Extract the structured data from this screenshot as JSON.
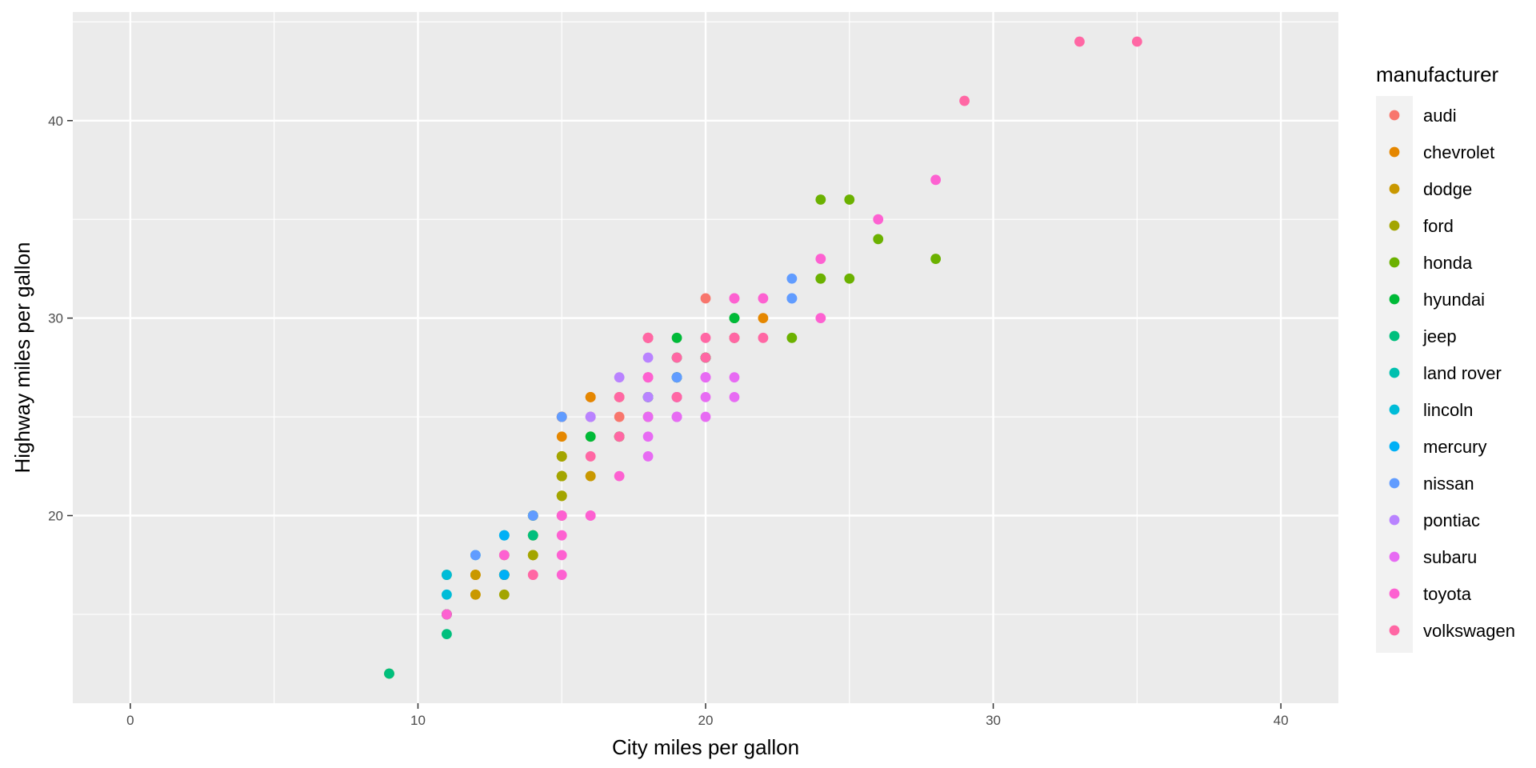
{
  "chart_data": {
    "type": "scatter",
    "xlabel": "City miles per gallon",
    "ylabel": "Highway miles per gallon",
    "xlim": [
      -2,
      42
    ],
    "ylim": [
      10.5,
      45.5
    ],
    "x_ticks": [
      0,
      10,
      20,
      30,
      40
    ],
    "y_ticks": [
      20,
      30,
      40
    ],
    "grid": true,
    "legend": {
      "title": "manufacturer",
      "position": "right"
    },
    "series": [
      {
        "name": "audi",
        "color": "#F8766D",
        "points": [
          [
            18,
            29
          ],
          [
            21,
            29
          ],
          [
            20,
            31
          ],
          [
            21,
            30
          ],
          [
            16,
            26
          ],
          [
            18,
            26
          ],
          [
            18,
            27
          ],
          [
            18,
            26
          ],
          [
            16,
            25
          ],
          [
            20,
            28
          ],
          [
            19,
            27
          ],
          [
            15,
            25
          ],
          [
            17,
            25
          ],
          [
            17,
            24
          ],
          [
            15,
            25
          ]
        ]
      },
      {
        "name": "chevrolet",
        "color": "#E58700",
        "points": [
          [
            14,
            20
          ],
          [
            11,
            15
          ],
          [
            14,
            20
          ],
          [
            13,
            17
          ],
          [
            12,
            17
          ],
          [
            16,
            26
          ],
          [
            15,
            23
          ],
          [
            16,
            26
          ],
          [
            15,
            25
          ],
          [
            15,
            24
          ],
          [
            19,
            27
          ],
          [
            22,
            30
          ],
          [
            18,
            26
          ],
          [
            18,
            29
          ],
          [
            17,
            26
          ],
          [
            15,
            22
          ],
          [
            18,
            25
          ],
          [
            15,
            23
          ],
          [
            12,
            17
          ]
        ]
      },
      {
        "name": "dodge",
        "color": "#C99800",
        "points": [
          [
            15,
            22
          ],
          [
            14,
            18
          ],
          [
            13,
            17
          ],
          [
            16,
            22
          ],
          [
            15,
            21
          ],
          [
            14,
            19
          ],
          [
            11,
            15
          ],
          [
            9,
            12
          ],
          [
            12,
            16
          ],
          [
            12,
            17
          ],
          [
            14,
            18
          ],
          [
            13,
            17
          ],
          [
            15,
            21
          ],
          [
            16,
            22
          ],
          [
            17,
            24
          ],
          [
            13,
            17
          ],
          [
            12,
            16
          ],
          [
            11,
            15
          ],
          [
            15,
            22
          ]
        ]
      },
      {
        "name": "ford",
        "color": "#A3A500",
        "points": [
          [
            11,
            17
          ],
          [
            13,
            16
          ],
          [
            13,
            17
          ],
          [
            15,
            21
          ],
          [
            14,
            19
          ],
          [
            13,
            18
          ],
          [
            15,
            23
          ],
          [
            16,
            24
          ],
          [
            15,
            22
          ],
          [
            15,
            23
          ],
          [
            15,
            22
          ],
          [
            14,
            18
          ],
          [
            14,
            20
          ],
          [
            15,
            21
          ],
          [
            15,
            20
          ],
          [
            15,
            22
          ]
        ]
      },
      {
        "name": "honda",
        "color": "#6BB100",
        "points": [
          [
            28,
            33
          ],
          [
            24,
            32
          ],
          [
            25,
            32
          ],
          [
            23,
            29
          ],
          [
            24,
            32
          ],
          [
            26,
            34
          ],
          [
            25,
            36
          ],
          [
            24,
            36
          ],
          [
            21,
            29
          ]
        ]
      },
      {
        "name": "hyundai",
        "color": "#00BA38",
        "points": [
          [
            18,
            26
          ],
          [
            16,
            24
          ],
          [
            19,
            29
          ],
          [
            21,
            30
          ],
          [
            18,
            26
          ],
          [
            19,
            28
          ],
          [
            19,
            27
          ],
          [
            20,
            28
          ],
          [
            21,
            30
          ],
          [
            17,
            24
          ],
          [
            19,
            27
          ],
          [
            20,
            28
          ],
          [
            19,
            26
          ]
        ]
      },
      {
        "name": "jeep",
        "color": "#00BF7D",
        "points": [
          [
            14,
            19
          ],
          [
            11,
            14
          ],
          [
            13,
            19
          ],
          [
            9,
            12
          ],
          [
            14,
            20
          ]
        ]
      },
      {
        "name": "land rover",
        "color": "#00C0AF",
        "points": [
          [
            11,
            15
          ],
          [
            12,
            18
          ]
        ]
      },
      {
        "name": "lincoln",
        "color": "#00BCD8",
        "points": [
          [
            11,
            17
          ],
          [
            11,
            16
          ]
        ]
      },
      {
        "name": "mercury",
        "color": "#00B0F6",
        "points": [
          [
            13,
            19
          ],
          [
            13,
            17
          ]
        ]
      },
      {
        "name": "nissan",
        "color": "#619CFF",
        "points": [
          [
            23,
            32
          ],
          [
            23,
            31
          ],
          [
            19,
            27
          ],
          [
            19,
            26
          ],
          [
            18,
            26
          ],
          [
            19,
            25
          ],
          [
            12,
            18
          ],
          [
            14,
            20
          ],
          [
            15,
            25
          ],
          [
            19,
            27
          ],
          [
            23,
            31
          ]
        ]
      },
      {
        "name": "pontiac",
        "color": "#B983FF",
        "points": [
          [
            18,
            26
          ],
          [
            16,
            25
          ],
          [
            17,
            27
          ],
          [
            18,
            28
          ],
          [
            16,
            25
          ]
        ]
      },
      {
        "name": "subaru",
        "color": "#E76BF3",
        "points": [
          [
            18,
            25
          ],
          [
            18,
            24
          ],
          [
            20,
            27
          ],
          [
            19,
            25
          ],
          [
            20,
            26
          ],
          [
            18,
            23
          ],
          [
            21,
            27
          ],
          [
            21,
            26
          ],
          [
            20,
            27
          ],
          [
            19,
            26
          ],
          [
            19,
            26
          ],
          [
            20,
            25
          ],
          [
            19,
            25
          ],
          [
            20,
            27
          ]
        ]
      },
      {
        "name": "toyota",
        "color": "#FD61D1",
        "points": [
          [
            15,
            20
          ],
          [
            16,
            20
          ],
          [
            15,
            19
          ],
          [
            15,
            17
          ],
          [
            15,
            18
          ],
          [
            16,
            20
          ],
          [
            18,
            27
          ],
          [
            21,
            31
          ],
          [
            21,
            31
          ],
          [
            22,
            31
          ],
          [
            24,
            33
          ],
          [
            24,
            30
          ],
          [
            26,
            35
          ],
          [
            28,
            37
          ],
          [
            18,
            27
          ],
          [
            17,
            22
          ],
          [
            15,
            20
          ],
          [
            13,
            18
          ],
          [
            14,
            17
          ],
          [
            11,
            15
          ],
          [
            18,
            29
          ],
          [
            19,
            26
          ]
        ]
      },
      {
        "name": "volkswagen",
        "color": "#FF67A4",
        "points": [
          [
            33,
            44
          ],
          [
            35,
            44
          ],
          [
            29,
            41
          ],
          [
            21,
            29
          ],
          [
            19,
            28
          ],
          [
            22,
            29
          ],
          [
            17,
            26
          ],
          [
            20,
            29
          ],
          [
            16,
            23
          ],
          [
            18,
            29
          ],
          [
            17,
            24
          ],
          [
            20,
            28
          ],
          [
            21,
            29
          ],
          [
            19,
            26
          ],
          [
            14,
            17
          ]
        ]
      }
    ]
  }
}
